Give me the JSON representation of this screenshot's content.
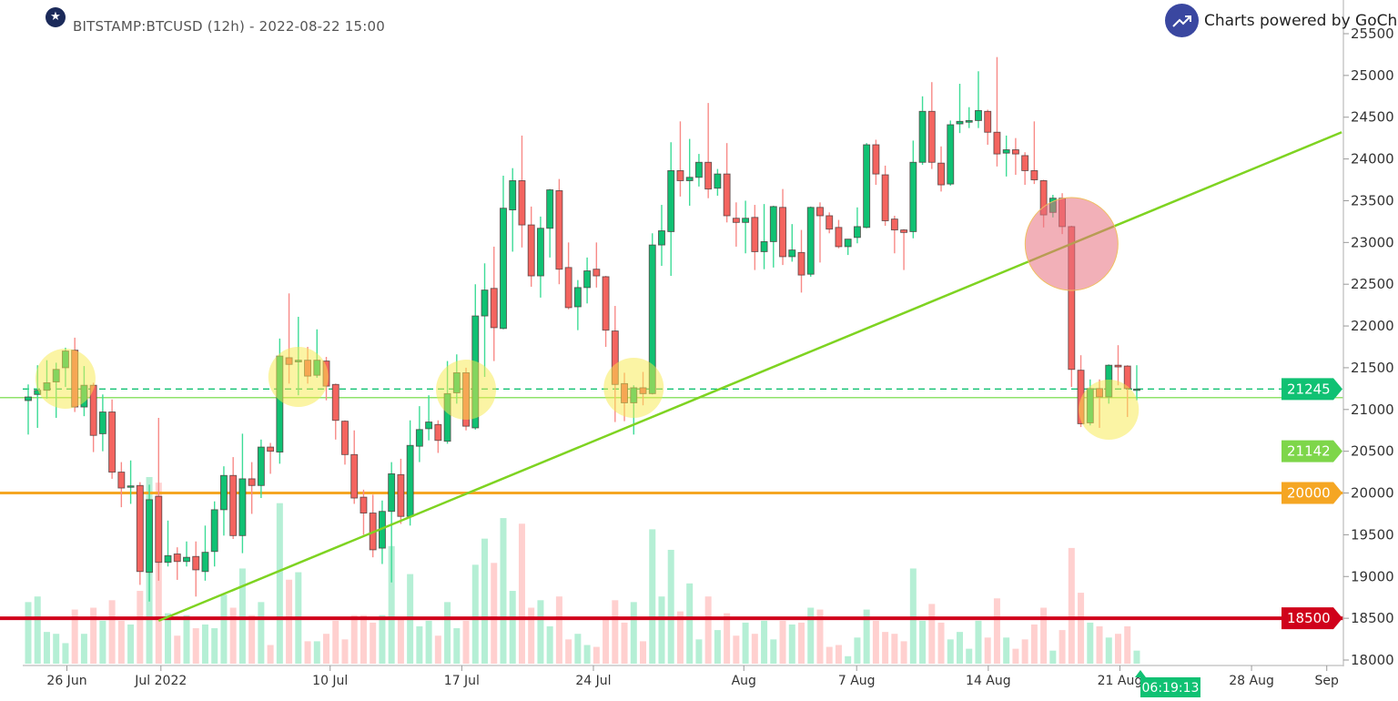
{
  "header": {
    "title": "BITSTAMP:BTCUSD (12h) - 2022-08-22 15:00",
    "badge_icon": "star-icon"
  },
  "branding": {
    "text": "Charts powered by GoCharti",
    "logo_icon": "trending-up-icon"
  },
  "colors": {
    "up": "#10c173",
    "down": "#f4645f",
    "volume_up": "#b5efd5",
    "volume_down": "#ffd0cf",
    "trendline": "#7ed321",
    "support_orange": "#f5a623",
    "support_red": "#d0021b",
    "level_green": "#8fe36b",
    "last_price": "#10c173",
    "highlight_yellow": "#f8e94a",
    "highlight_pink": "#e8707e",
    "brand": "#3a47a0"
  },
  "chart_data": {
    "type": "candlestick",
    "symbol": "BITSTAMP:BTCUSD",
    "interval": "12h",
    "ylim": [
      18000,
      25500
    ],
    "y_ticks": [
      "25500",
      "25000",
      "24500",
      "24000",
      "23500",
      "23000",
      "22500",
      "22000",
      "21500",
      "21000",
      "20500",
      "20000",
      "19500",
      "19000",
      "18500",
      "18000"
    ],
    "x_ticks": [
      {
        "label": "26 Jun",
        "date": "2022-06-26"
      },
      {
        "label": "Jul 2022",
        "date": "2022-07-01"
      },
      {
        "label": "10 Jul",
        "date": "2022-07-10"
      },
      {
        "label": "17 Jul",
        "date": "2022-07-17"
      },
      {
        "label": "24 Jul",
        "date": "2022-07-24"
      },
      {
        "label": "Aug",
        "date": "2022-08-01"
      },
      {
        "label": "7 Aug",
        "date": "2022-08-07"
      },
      {
        "label": "14 Aug",
        "date": "2022-08-14"
      },
      {
        "label": "21 Aug",
        "date": "2022-08-21"
      },
      {
        "label": "28 Aug",
        "date": "2022-08-28"
      },
      {
        "label": "Sep",
        "date": "2022-09-01"
      }
    ],
    "ohlc_fields": [
      "open",
      "high",
      "low",
      "close"
    ],
    "candles": [
      [
        21107,
        21300,
        20700,
        21150
      ],
      [
        21180,
        21530,
        20780,
        21230
      ],
      [
        21230,
        21590,
        21130,
        21320
      ],
      [
        21330,
        21560,
        20900,
        21480
      ],
      [
        21500,
        21740,
        21270,
        21700
      ],
      [
        21710,
        21860,
        20970,
        21030
      ],
      [
        21030,
        21520,
        20920,
        21290
      ],
      [
        21290,
        21320,
        20490,
        20690
      ],
      [
        20710,
        21180,
        20500,
        20970
      ],
      [
        20970,
        21120,
        20170,
        20250
      ],
      [
        20250,
        20370,
        19830,
        20060
      ],
      [
        20080,
        20390,
        19870,
        20085
      ],
      [
        20090,
        20130,
        18900,
        19060
      ],
      [
        19050,
        20100,
        18700,
        19920
      ],
      [
        19960,
        20900,
        18950,
        19170
      ],
      [
        19170,
        19670,
        19120,
        19250
      ],
      [
        19270,
        19350,
        18960,
        19180
      ],
      [
        19180,
        19420,
        19120,
        19230
      ],
      [
        19240,
        19420,
        18760,
        19080
      ],
      [
        19060,
        19610,
        18950,
        19290
      ],
      [
        19300,
        19900,
        19120,
        19800
      ],
      [
        19800,
        20320,
        19490,
        20210
      ],
      [
        20210,
        20430,
        19450,
        19490
      ],
      [
        19490,
        20710,
        19280,
        20170
      ],
      [
        20170,
        20370,
        19750,
        20090
      ],
      [
        20090,
        20640,
        19940,
        20550
      ],
      [
        20550,
        20600,
        20230,
        20500
      ],
      [
        20490,
        21850,
        20350,
        21640
      ],
      [
        21620,
        22390,
        21310,
        21540
      ],
      [
        21570,
        22110,
        21170,
        21590
      ],
      [
        21590,
        21750,
        21310,
        21400
      ],
      [
        21410,
        21960,
        21380,
        21590
      ],
      [
        21580,
        21630,
        21110,
        21280
      ],
      [
        21300,
        21310,
        20640,
        20870
      ],
      [
        20860,
        20870,
        20340,
        20460
      ],
      [
        20460,
        20750,
        19870,
        19940
      ],
      [
        19950,
        20040,
        19500,
        19760
      ],
      [
        19760,
        19980,
        19230,
        19320
      ],
      [
        19340,
        19910,
        19150,
        19780
      ],
      [
        19780,
        20370,
        18930,
        20230
      ],
      [
        20220,
        20410,
        19630,
        19720
      ],
      [
        19720,
        20870,
        19610,
        20570
      ],
      [
        20560,
        21040,
        20370,
        20760
      ],
      [
        20770,
        21170,
        20630,
        20850
      ],
      [
        20820,
        20870,
        20480,
        20630
      ],
      [
        20620,
        21580,
        20590,
        21190
      ],
      [
        21200,
        21660,
        21070,
        21440
      ],
      [
        21440,
        21500,
        20750,
        20800
      ],
      [
        20780,
        22500,
        20760,
        22120
      ],
      [
        22120,
        22750,
        21390,
        22430
      ],
      [
        22450,
        22950,
        21580,
        21980
      ],
      [
        21970,
        23800,
        21960,
        23410
      ],
      [
        23390,
        23890,
        22890,
        23740
      ],
      [
        23740,
        24280,
        22940,
        23210
      ],
      [
        23210,
        23430,
        22470,
        22600
      ],
      [
        22600,
        23310,
        22340,
        23170
      ],
      [
        23170,
        23640,
        22820,
        23630
      ],
      [
        23620,
        23760,
        22500,
        22680
      ],
      [
        22700,
        23000,
        22200,
        22220
      ],
      [
        22230,
        22550,
        21950,
        22460
      ],
      [
        22460,
        22820,
        22270,
        22660
      ],
      [
        22680,
        23000,
        22460,
        22600
      ],
      [
        22590,
        22600,
        21750,
        21950
      ],
      [
        21940,
        22240,
        20850,
        21300
      ],
      [
        21310,
        21440,
        20860,
        21080
      ],
      [
        21080,
        21290,
        20700,
        21260
      ],
      [
        21260,
        21450,
        21050,
        21190
      ],
      [
        21190,
        23110,
        21180,
        22970
      ],
      [
        22970,
        23450,
        22720,
        23140
      ],
      [
        23130,
        24200,
        22600,
        23860
      ],
      [
        23860,
        24450,
        23550,
        23740
      ],
      [
        23740,
        24240,
        23440,
        23780
      ],
      [
        23780,
        24060,
        23670,
        23960
      ],
      [
        23960,
        24670,
        23530,
        23640
      ],
      [
        23650,
        23880,
        23560,
        23820
      ],
      [
        23820,
        24190,
        23240,
        23320
      ],
      [
        23290,
        23480,
        22950,
        23240
      ],
      [
        23240,
        23500,
        22870,
        23290
      ],
      [
        23300,
        23450,
        22670,
        22890
      ],
      [
        22890,
        23460,
        22680,
        23010
      ],
      [
        23010,
        23440,
        22700,
        23430
      ],
      [
        23420,
        23640,
        22730,
        22830
      ],
      [
        22830,
        23220,
        22770,
        22910
      ],
      [
        22880,
        23150,
        22400,
        22610
      ],
      [
        22620,
        23430,
        22590,
        23420
      ],
      [
        23420,
        23480,
        22760,
        23320
      ],
      [
        23320,
        23360,
        23110,
        23160
      ],
      [
        23180,
        23270,
        22930,
        22950
      ],
      [
        22950,
        23040,
        22850,
        23040
      ],
      [
        23060,
        23420,
        22990,
        23190
      ],
      [
        23180,
        24190,
        23170,
        24170
      ],
      [
        24170,
        24230,
        23690,
        23820
      ],
      [
        23810,
        23920,
        23200,
        23260
      ],
      [
        23280,
        23320,
        22870,
        23150
      ],
      [
        23150,
        23160,
        22670,
        23120
      ],
      [
        23130,
        24220,
        23050,
        23960
      ],
      [
        23960,
        24750,
        23930,
        24570
      ],
      [
        24570,
        24920,
        23880,
        23960
      ],
      [
        23950,
        24150,
        23610,
        23690
      ],
      [
        23700,
        24460,
        23680,
        24410
      ],
      [
        24420,
        24900,
        24310,
        24450
      ],
      [
        24440,
        24620,
        24370,
        24460
      ],
      [
        24460,
        25050,
        24370,
        24580
      ],
      [
        24570,
        24590,
        24170,
        24320
      ],
      [
        24320,
        25220,
        23910,
        24060
      ],
      [
        24070,
        24280,
        23790,
        24110
      ],
      [
        24110,
        24250,
        23810,
        24060
      ],
      [
        24040,
        24080,
        23690,
        23860
      ],
      [
        23860,
        24450,
        23700,
        23750
      ],
      [
        23740,
        23750,
        23180,
        23330
      ],
      [
        23360,
        23570,
        23300,
        23530
      ],
      [
        23530,
        23590,
        23100,
        23190
      ],
      [
        23190,
        23200,
        21270,
        21480
      ],
      [
        21470,
        21650,
        20790,
        20830
      ],
      [
        20840,
        21360,
        20810,
        21250
      ],
      [
        21250,
        21360,
        20780,
        21150
      ],
      [
        21150,
        21540,
        21070,
        21530
      ],
      [
        21530,
        21770,
        21290,
        21510
      ],
      [
        21520,
        21530,
        20910,
        21250
      ],
      [
        21240,
        21530,
        21110,
        21245
      ]
    ],
    "volume_relative_pct": [
      33,
      36,
      17,
      16,
      11,
      29,
      16,
      30,
      23,
      34,
      23,
      21,
      39,
      100,
      97,
      27,
      15,
      26,
      19,
      21,
      19,
      37,
      30,
      51,
      26,
      33,
      10,
      86,
      45,
      49,
      12,
      12,
      16,
      23,
      13,
      26,
      26,
      22,
      26,
      63,
      24,
      48,
      20,
      23,
      15,
      33,
      19,
      23,
      53,
      67,
      54,
      78,
      39,
      75,
      30,
      34,
      20,
      36,
      13,
      16,
      10,
      9,
      24,
      34,
      22,
      33,
      12,
      72,
      36,
      61,
      28,
      43,
      13,
      36,
      18,
      27,
      15,
      22,
      16,
      23,
      13,
      23,
      21,
      22,
      30,
      29,
      9,
      10,
      4,
      14,
      29,
      23,
      17,
      16,
      12,
      51,
      23,
      32,
      22,
      13,
      17,
      8,
      23,
      14,
      35,
      14,
      8,
      13,
      21,
      30,
      7,
      18,
      62,
      38,
      22,
      20,
      14,
      16,
      20,
      7
    ],
    "horizontal_levels": [
      {
        "price": 21245,
        "label": "21245",
        "style": "dashed",
        "color": "#10c173",
        "tag_color": "#10c173"
      },
      {
        "price": 21142,
        "label": "21142",
        "style": "solid-thin",
        "color": "#8fe36b",
        "tag_color": "#7ed64a"
      },
      {
        "price": 20000,
        "label": "20000",
        "style": "solid-thick",
        "color": "#f5a623",
        "tag_color": "#f5a623"
      },
      {
        "price": 18500,
        "label": "18500",
        "style": "solid-thick",
        "color": "#d0021b",
        "tag_color": "#d0021b"
      }
    ],
    "trendline": {
      "start": {
        "candle": 15,
        "price": 18470
      },
      "end": {
        "candle": 142,
        "price": 24320
      },
      "color": "#7ed321"
    },
    "highlights": [
      {
        "candle": 5,
        "price": 21368,
        "color": "yellow"
      },
      {
        "candle": 30,
        "price": 21390,
        "color": "yellow"
      },
      {
        "candle": 48,
        "price": 21237,
        "color": "yellow"
      },
      {
        "candle": 66,
        "price": 21260,
        "color": "yellow"
      },
      {
        "candle": 117,
        "price": 20998,
        "color": "yellow"
      },
      {
        "candle": 113,
        "price": 22982,
        "color": "pink"
      }
    ],
    "current_price": 21245,
    "countdown": "06:19:13"
  }
}
